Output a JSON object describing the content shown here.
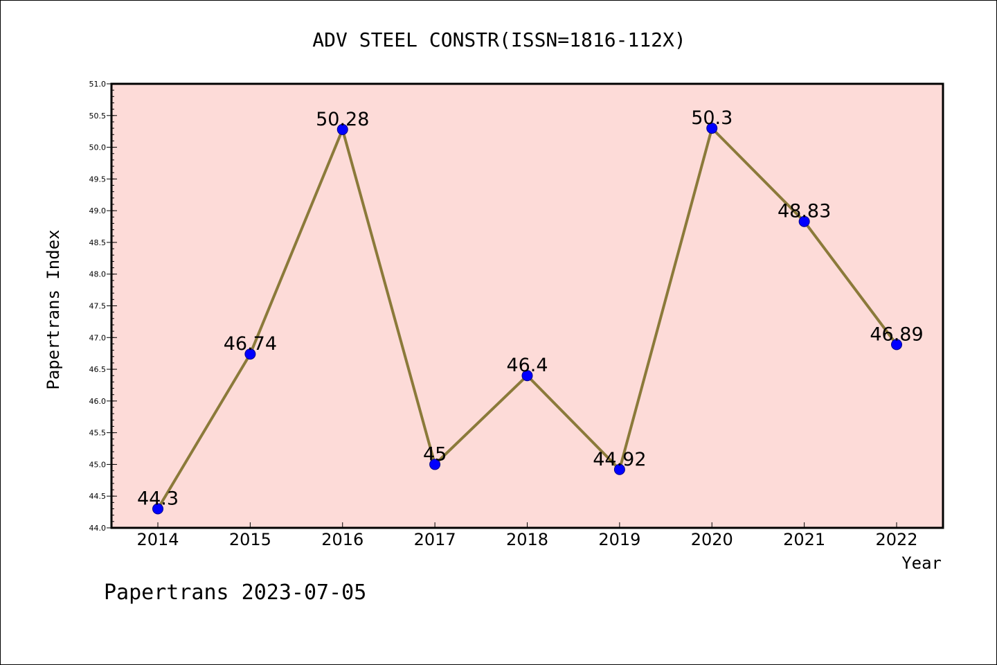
{
  "colors": {
    "plot_background": "#fddbd8",
    "line": "#8b7a3a",
    "marker_fill": "#0000ff",
    "marker_stroke": "#00008b",
    "axis": "#000000"
  },
  "footer": "Papertrans 2023-07-05",
  "chart_data": {
    "type": "line",
    "title": "ADV STEEL CONSTR(ISSN=1816-112X)",
    "xlabel": "Year",
    "ylabel": "Papertrans Index",
    "ylim": [
      44.0,
      51.0
    ],
    "ytick_labels": [
      "44.0",
      "44.5",
      "45.0",
      "45.5",
      "46.0",
      "46.5",
      "47.0",
      "47.5",
      "48.0",
      "48.5",
      "49.0",
      "49.5",
      "50.0",
      "50.5",
      "51.0"
    ],
    "x": [
      "2014",
      "2015",
      "2016",
      "2017",
      "2018",
      "2019",
      "2020",
      "2021",
      "2022"
    ],
    "values": [
      44.3,
      46.74,
      50.28,
      45,
      46.4,
      44.92,
      50.3,
      48.83,
      46.89
    ],
    "data_labels": [
      "44.3",
      "46.74",
      "50.28",
      "45",
      "46.4",
      "44.92",
      "50.3",
      "48.83",
      "46.89"
    ],
    "grid": false,
    "legend": "none"
  }
}
